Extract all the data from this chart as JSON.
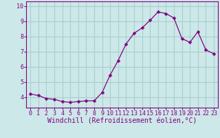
{
  "x": [
    0,
    1,
    2,
    3,
    4,
    5,
    6,
    7,
    8,
    9,
    10,
    11,
    12,
    13,
    14,
    15,
    16,
    17,
    18,
    19,
    20,
    21,
    22,
    23
  ],
  "y": [
    4.2,
    4.1,
    3.9,
    3.85,
    3.7,
    3.65,
    3.7,
    3.75,
    3.75,
    4.3,
    5.45,
    6.4,
    7.5,
    8.2,
    8.55,
    9.05,
    9.6,
    9.5,
    9.2,
    7.85,
    7.6,
    8.3,
    7.1,
    6.85
  ],
  "line_color": "#800080",
  "marker": "D",
  "marker_size": 2.5,
  "bg_color": "#cce8e8",
  "grid_color": "#aacece",
  "xlabel": "Windchill (Refroidissement éolien,°C)",
  "xlim": [
    -0.5,
    23.5
  ],
  "ylim": [
    3.3,
    10.3
  ],
  "yticks": [
    4,
    5,
    6,
    7,
    8,
    9,
    10
  ],
  "xticks": [
    0,
    1,
    2,
    3,
    4,
    5,
    6,
    7,
    8,
    9,
    10,
    11,
    12,
    13,
    14,
    15,
    16,
    17,
    18,
    19,
    20,
    21,
    22,
    23
  ],
  "line_color2": "#800080",
  "axis_color": "#800080",
  "tick_color": "#800080",
  "label_fontsize": 7,
  "tick_fontsize": 6
}
